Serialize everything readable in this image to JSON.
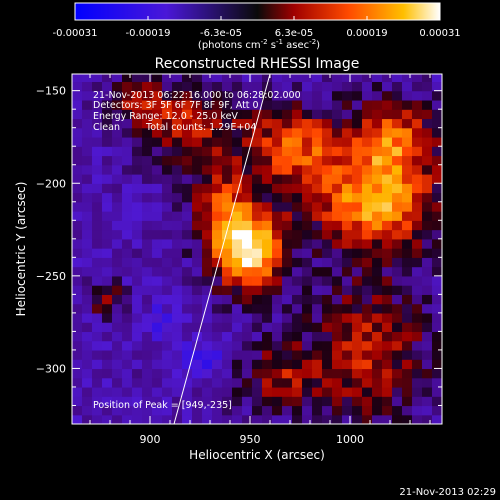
{
  "colorbar": {
    "ticks": [
      "-0.00031",
      "-0.00019",
      "-6.3e-05",
      "6.3e-05",
      "0.00019",
      "0.00031"
    ],
    "unit_main": "(photons cm",
    "unit_sup1": "-2",
    "unit_mid": " s",
    "unit_sup2": "-1",
    "unit_mid2": " asec",
    "unit_sup3": "-2",
    "unit_end": ")"
  },
  "info": {
    "time_range": "21-Nov-2013 06:22:16.000 to 06:28:02.000",
    "detectors": "Detectors: 3F 5F 6F 7F 8F 9F, Att 0",
    "energy": "Energy Range: 12.0 - 25.0 keV",
    "method": "Clean",
    "counts": "Total counts: 1.29E+04",
    "peak": "Position of Peak = [949,-235]"
  },
  "footer": {
    "timestamp": "21-Nov-2013 02:29"
  },
  "colors": {
    "background": "#000000",
    "frame": "#ffffff",
    "limb": "#ffffff"
  },
  "chart_data": {
    "type": "heatmap",
    "title": "Reconstructed RHESSI Image",
    "xlabel": "Heliocentric X (arcsec)",
    "ylabel": "Heliocentric Y (arcsec)",
    "xlim": [
      861,
      1046
    ],
    "ylim": [
      -330,
      -141
    ],
    "x_ticks": [
      900,
      950,
      1000
    ],
    "y_ticks": [
      -150,
      -200,
      -250,
      -300
    ],
    "colorbar_range": [
      -0.00031,
      0.00031
    ],
    "peak_position": [
      949,
      -235
    ],
    "grid": false,
    "limb_line": [
      [
        912,
        -330
      ],
      [
        960,
        -141
      ]
    ],
    "sources": [
      {
        "x": 949,
        "y": -235,
        "sx": 13,
        "sy": 15,
        "amp": 1.0
      },
      {
        "x": 1012,
        "y": -210,
        "sx": 22,
        "sy": 18,
        "amp": 0.72
      },
      {
        "x": 1022,
        "y": -175,
        "sx": 15,
        "sy": 15,
        "amp": 0.55
      },
      {
        "x": 972,
        "y": -180,
        "sx": 18,
        "sy": 16,
        "amp": 0.55
      },
      {
        "x": 918,
        "y": -168,
        "sx": 18,
        "sy": 15,
        "amp": 0.45
      },
      {
        "x": 1010,
        "y": -290,
        "sx": 22,
        "sy": 28,
        "amp": 0.42
      },
      {
        "x": 965,
        "y": -305,
        "sx": 15,
        "sy": 14,
        "amp": 0.35
      },
      {
        "x": 935,
        "y": -210,
        "sx": 10,
        "sy": 14,
        "amp": 0.45
      },
      {
        "x": 878,
        "y": -262,
        "sx": 6,
        "sy": 6,
        "amp": 0.35
      },
      {
        "x": 893,
        "y": -152,
        "sx": 10,
        "sy": 8,
        "amp": 0.3
      },
      {
        "x": 905,
        "y": -275,
        "sx": 6,
        "sy": 6,
        "amp": -0.25
      },
      {
        "x": 927,
        "y": -295,
        "sx": 7,
        "sy": 7,
        "amp": -0.3
      }
    ]
  }
}
